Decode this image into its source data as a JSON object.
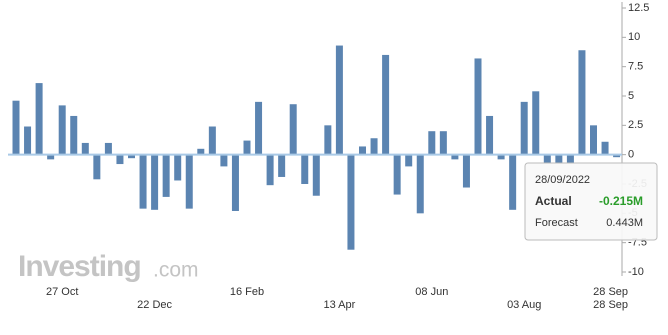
{
  "chart_data": {
    "type": "bar",
    "categories": [
      null,
      null,
      null,
      null,
      "27 Oct",
      null,
      null,
      null,
      null,
      null,
      null,
      null,
      "22 Dec",
      null,
      null,
      null,
      null,
      null,
      null,
      null,
      "16 Feb",
      null,
      null,
      null,
      null,
      null,
      null,
      null,
      "13 Apr",
      null,
      null,
      null,
      null,
      null,
      null,
      null,
      "08 Jun",
      null,
      null,
      null,
      null,
      null,
      null,
      null,
      "03 Aug",
      null,
      null,
      null,
      null,
      null,
      null,
      null,
      "28 Sep"
    ],
    "values": [
      4.6,
      2.4,
      6.1,
      -0.4,
      4.2,
      3.3,
      1.0,
      -2.1,
      1.0,
      -0.8,
      -0.3,
      -4.6,
      -4.7,
      -3.6,
      -2.2,
      -4.6,
      0.5,
      2.4,
      -1.0,
      -4.8,
      1.2,
      4.5,
      -2.6,
      -1.9,
      4.3,
      -2.5,
      -3.5,
      2.5,
      9.3,
      -8.1,
      0.7,
      1.4,
      8.5,
      -3.4,
      -1.0,
      -5.0,
      2.0,
      2.0,
      -0.4,
      -2.8,
      8.2,
      3.3,
      -0.4,
      -4.7,
      4.5,
      5.4,
      -0.7,
      -0.7,
      -0.7,
      8.9,
      2.5,
      1.1,
      -0.215
    ],
    "color": "#5b84b1",
    "ylim": [
      -10,
      12.5
    ],
    "yticks": [
      12.5,
      10,
      7.5,
      5,
      2.5,
      0,
      -2.5,
      -5,
      -7.5,
      -10
    ],
    "tooltip": {
      "date": "28/09/2022",
      "actual_label": "Actual",
      "actual": "-0.215M",
      "forecast_label": "Forecast",
      "forecast": "0.443M"
    },
    "brand": {
      "name": "Investing",
      "suffix": ".com"
    }
  }
}
